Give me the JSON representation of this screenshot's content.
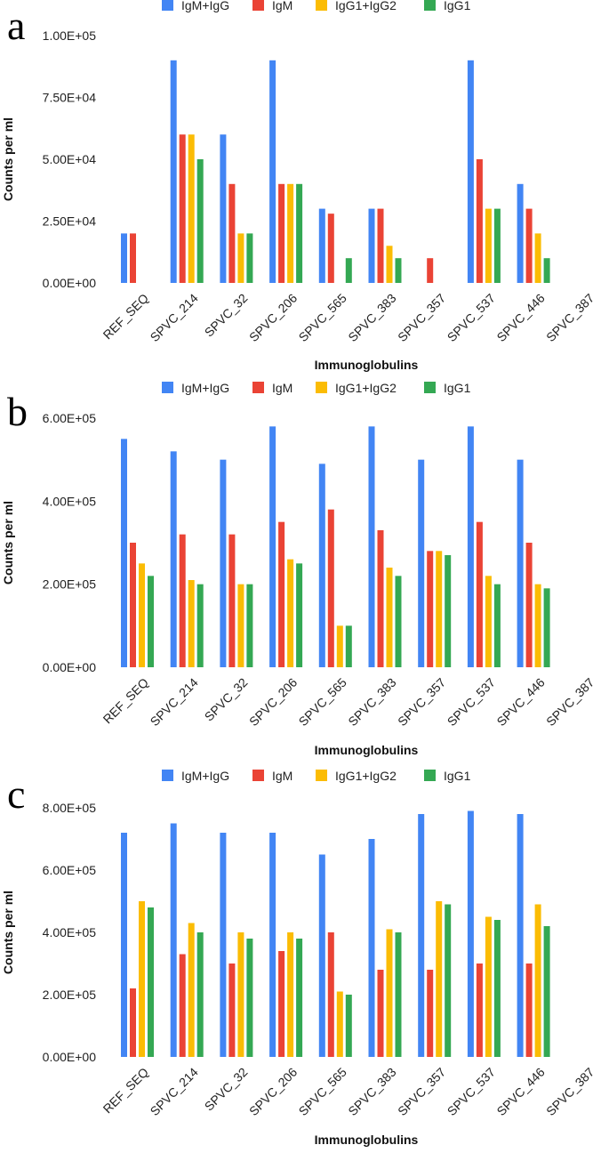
{
  "colors": {
    "IgM+IgG": "#4285f4",
    "IgM": "#ea4335",
    "IgG1+IgG2": "#fbbc04",
    "IgG1": "#34a853"
  },
  "chart_data": [
    {
      "panel": "a",
      "type": "bar",
      "categories": [
        "REF_SEQ",
        "SPVC_214",
        "SPVC_32",
        "SPVC_206",
        "SPVC_565",
        "SPVC_383",
        "SPVC_357",
        "SPVC_537",
        "SPVC_446",
        "SPVC_387"
      ],
      "series": [
        {
          "name": "IgM+IgG",
          "values": [
            20000,
            90000,
            60000,
            90000,
            30000,
            30000,
            0,
            90000,
            40000,
            0
          ]
        },
        {
          "name": "IgM",
          "values": [
            20000,
            60000,
            40000,
            40000,
            28000,
            30000,
            10000,
            50000,
            30000,
            0
          ]
        },
        {
          "name": "IgG1+IgG2",
          "values": [
            0,
            60000,
            20000,
            40000,
            0,
            15000,
            0,
            30000,
            20000,
            0
          ]
        },
        {
          "name": "IgG1",
          "values": [
            0,
            50000,
            20000,
            40000,
            10000,
            10000,
            0,
            30000,
            10000,
            0
          ]
        }
      ],
      "xlabel": "Immunoglobulins",
      "ylabel": "Counts per ml",
      "ylim": [
        0,
        100000
      ],
      "yticks": [
        0,
        25000,
        50000,
        75000,
        100000
      ],
      "ytick_labels": [
        "0.00E+00",
        "2.50E+04",
        "5.00E+04",
        "7.50E+04",
        "1.00E+05"
      ],
      "legend": "top"
    },
    {
      "panel": "b",
      "type": "bar",
      "categories": [
        "REF_SEQ",
        "SPVC_214",
        "SPVC_32",
        "SPVC_206",
        "SPVC_565",
        "SPVC_383",
        "SPVC_357",
        "SPVC_537",
        "SPVC_446",
        "SPVC_387"
      ],
      "series": [
        {
          "name": "IgM+IgG",
          "values": [
            550000,
            520000,
            500000,
            580000,
            490000,
            580000,
            500000,
            580000,
            500000,
            0
          ]
        },
        {
          "name": "IgM",
          "values": [
            300000,
            320000,
            320000,
            350000,
            380000,
            330000,
            280000,
            350000,
            300000,
            0
          ]
        },
        {
          "name": "IgG1+IgG2",
          "values": [
            250000,
            210000,
            200000,
            260000,
            100000,
            240000,
            280000,
            220000,
            200000,
            0
          ]
        },
        {
          "name": "IgG1",
          "values": [
            220000,
            200000,
            200000,
            250000,
            100000,
            220000,
            270000,
            200000,
            190000,
            0
          ]
        }
      ],
      "xlabel": "Immunoglobulins",
      "ylabel": "Counts per ml",
      "ylim": [
        0,
        600000
      ],
      "yticks": [
        0,
        200000,
        400000,
        600000
      ],
      "ytick_labels": [
        "0.00E+00",
        "2.00E+05",
        "4.00E+05",
        "6.00E+05"
      ],
      "legend": "top"
    },
    {
      "panel": "c",
      "type": "bar",
      "categories": [
        "REF_SEQ",
        "SPVC_214",
        "SPVC_32",
        "SPVC_206",
        "SPVC_565",
        "SPVC_383",
        "SPVC_357",
        "SPVC_537",
        "SPVC_446",
        "SPVC_387"
      ],
      "series": [
        {
          "name": "IgM+IgG",
          "values": [
            720000,
            750000,
            720000,
            720000,
            650000,
            700000,
            780000,
            790000,
            780000,
            0
          ]
        },
        {
          "name": "IgM",
          "values": [
            220000,
            330000,
            300000,
            340000,
            400000,
            280000,
            280000,
            300000,
            300000,
            0
          ]
        },
        {
          "name": "IgG1+IgG2",
          "values": [
            500000,
            430000,
            400000,
            400000,
            210000,
            410000,
            500000,
            450000,
            490000,
            0
          ]
        },
        {
          "name": "IgG1",
          "values": [
            480000,
            400000,
            380000,
            380000,
            200000,
            400000,
            490000,
            440000,
            420000,
            0
          ]
        }
      ],
      "xlabel": "Immunoglobulins",
      "ylabel": "Counts per ml",
      "ylim": [
        0,
        800000
      ],
      "yticks": [
        0,
        200000,
        400000,
        600000,
        800000
      ],
      "ytick_labels": [
        "0.00E+00",
        "2.00E+05",
        "4.00E+05",
        "6.00E+05",
        "8.00E+05"
      ],
      "legend": "top"
    }
  ]
}
